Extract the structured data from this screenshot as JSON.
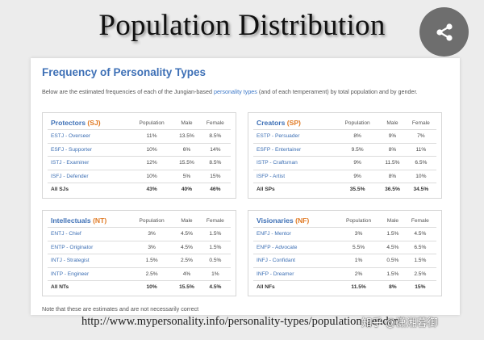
{
  "slide": {
    "title": "Population Distribution",
    "source_url": "http://www.mypersonality.info/personality-types/population-gender/"
  },
  "card": {
    "title": "Frequency of Personality Types",
    "intro_before": "Below are the estimated frequencies of each of the Jungian-based ",
    "intro_link": "personality types",
    "intro_after": " (and of each temperament) by total population and by gender.",
    "note": "Note that these are estimates and are not necessarily correct"
  },
  "columns": {
    "population": "Population",
    "male": "Male",
    "female": "Female"
  },
  "groups": {
    "protectors": {
      "name": "Protectors ",
      "code": "(SJ)",
      "rows": [
        {
          "type": "ESTJ - Overseer",
          "population": "11%",
          "male": "13.5%",
          "female": "8.5%"
        },
        {
          "type": "ESFJ - Supporter",
          "population": "10%",
          "male": "6%",
          "female": "14%"
        },
        {
          "type": "ISTJ - Examiner",
          "population": "12%",
          "male": "15.5%",
          "female": "8.5%"
        },
        {
          "type": "ISFJ - Defender",
          "population": "10%",
          "male": "5%",
          "female": "15%"
        }
      ],
      "total": {
        "type": "All SJs",
        "population": "43%",
        "male": "40%",
        "female": "46%"
      }
    },
    "creators": {
      "name": "Creators ",
      "code": "(SP)",
      "rows": [
        {
          "type": "ESTP - Persuader",
          "population": "8%",
          "male": "9%",
          "female": "7%"
        },
        {
          "type": "ESFP - Entertainer",
          "population": "9.5%",
          "male": "8%",
          "female": "11%"
        },
        {
          "type": "ISTP - Craftsman",
          "population": "9%",
          "male": "11.5%",
          "female": "6.5%"
        },
        {
          "type": "ISFP - Artist",
          "population": "9%",
          "male": "8%",
          "female": "10%"
        }
      ],
      "total": {
        "type": "All SPs",
        "population": "35.5%",
        "male": "36.5%",
        "female": "34.5%"
      }
    },
    "intellectuals": {
      "name": "Intellectuals ",
      "code": "(NT)",
      "rows": [
        {
          "type": "ENTJ - Chief",
          "population": "3%",
          "male": "4.5%",
          "female": "1.5%"
        },
        {
          "type": "ENTP - Originator",
          "population": "3%",
          "male": "4.5%",
          "female": "1.5%"
        },
        {
          "type": "INTJ - Strategist",
          "population": "1.5%",
          "male": "2.5%",
          "female": "0.5%"
        },
        {
          "type": "INTP - Engineer",
          "population": "2.5%",
          "male": "4%",
          "female": "1%"
        }
      ],
      "total": {
        "type": "All NTs",
        "population": "10%",
        "male": "15.5%",
        "female": "4.5%"
      }
    },
    "visionaries": {
      "name": "Visionaries ",
      "code": "(NF)",
      "rows": [
        {
          "type": "ENFJ - Mentor",
          "population": "3%",
          "male": "1.5%",
          "female": "4.5%"
        },
        {
          "type": "ENFP - Advocate",
          "population": "5.5%",
          "male": "4.5%",
          "female": "6.5%"
        },
        {
          "type": "INFJ - Confidant",
          "population": "1%",
          "male": "0.5%",
          "female": "1.5%"
        },
        {
          "type": "INFP - Dreamer",
          "population": "2%",
          "male": "1.5%",
          "female": "2.5%"
        }
      ],
      "total": {
        "type": "All NFs",
        "population": "11.5%",
        "male": "8%",
        "female": "15%"
      }
    }
  },
  "watermark": "知乎 @潇湘暮御",
  "icons": {
    "share": "share-icon"
  },
  "colors": {
    "heading_blue": "#3e70b6",
    "temperament_orange": "#e07a24",
    "link_blue": "#3c78c8"
  }
}
